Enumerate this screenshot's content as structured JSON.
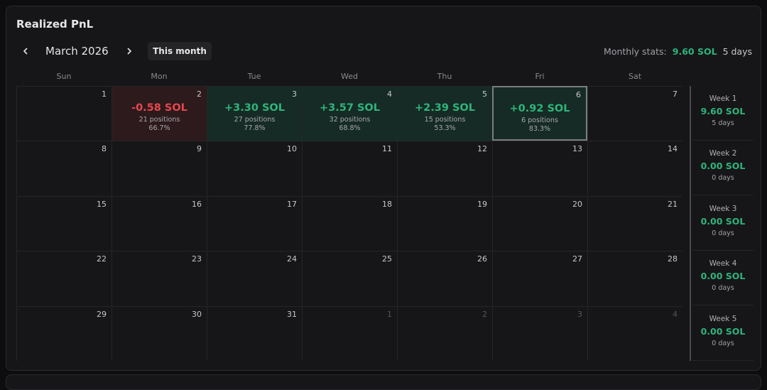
{
  "title": "Realized PnL",
  "nav": {
    "month": "March 2026",
    "button": "This month"
  },
  "stats": {
    "label": "Monthly stats:",
    "value": "9.60 SOL",
    "days": "5 days"
  },
  "weekdays": [
    "Sun",
    "Mon",
    "Tue",
    "Wed",
    "Thu",
    "Fri",
    "Sat"
  ],
  "selected_day": 6,
  "weeks": [
    {
      "days": [
        {
          "day": 1
        },
        {
          "day": 2,
          "pnl": "-0.58 SOL",
          "positions": "21 positions",
          "rate": "66.7%"
        },
        {
          "day": 3,
          "pnl": "+3.30 SOL",
          "positions": "27 positions",
          "rate": "77.8%"
        },
        {
          "day": 4,
          "pnl": "+3.57 SOL",
          "positions": "32 positions",
          "rate": "68.8%"
        },
        {
          "day": 5,
          "pnl": "+2.39 SOL",
          "positions": "15 positions",
          "rate": "53.3%"
        },
        {
          "day": 6,
          "pnl": "+0.92 SOL",
          "positions": "6 positions",
          "rate": "83.3%"
        },
        {
          "day": 7
        }
      ],
      "summary": {
        "label": "Week 1",
        "value": "9.60 SOL",
        "days": "5 days"
      }
    },
    {
      "days": [
        {
          "day": 8
        },
        {
          "day": 9
        },
        {
          "day": 10
        },
        {
          "day": 11
        },
        {
          "day": 12
        },
        {
          "day": 13
        },
        {
          "day": 14
        }
      ],
      "summary": {
        "label": "Week 2",
        "value": "0.00 SOL",
        "days": "0 days"
      }
    },
    {
      "days": [
        {
          "day": 15
        },
        {
          "day": 16
        },
        {
          "day": 17
        },
        {
          "day": 18
        },
        {
          "day": 19
        },
        {
          "day": 20
        },
        {
          "day": 21
        }
      ],
      "summary": {
        "label": "Week 3",
        "value": "0.00 SOL",
        "days": "0 days"
      }
    },
    {
      "days": [
        {
          "day": 22
        },
        {
          "day": 23
        },
        {
          "day": 24
        },
        {
          "day": 25
        },
        {
          "day": 26
        },
        {
          "day": 27
        },
        {
          "day": 28
        }
      ],
      "summary": {
        "label": "Week 4",
        "value": "0.00 SOL",
        "days": "0 days"
      }
    },
    {
      "days": [
        {
          "day": 29
        },
        {
          "day": 30
        },
        {
          "day": 31
        }
      ],
      "next_days": [
        1,
        2,
        3,
        4
      ],
      "summary": {
        "label": "Week 5",
        "value": "0.00 SOL",
        "days": "0 days"
      }
    }
  ]
}
